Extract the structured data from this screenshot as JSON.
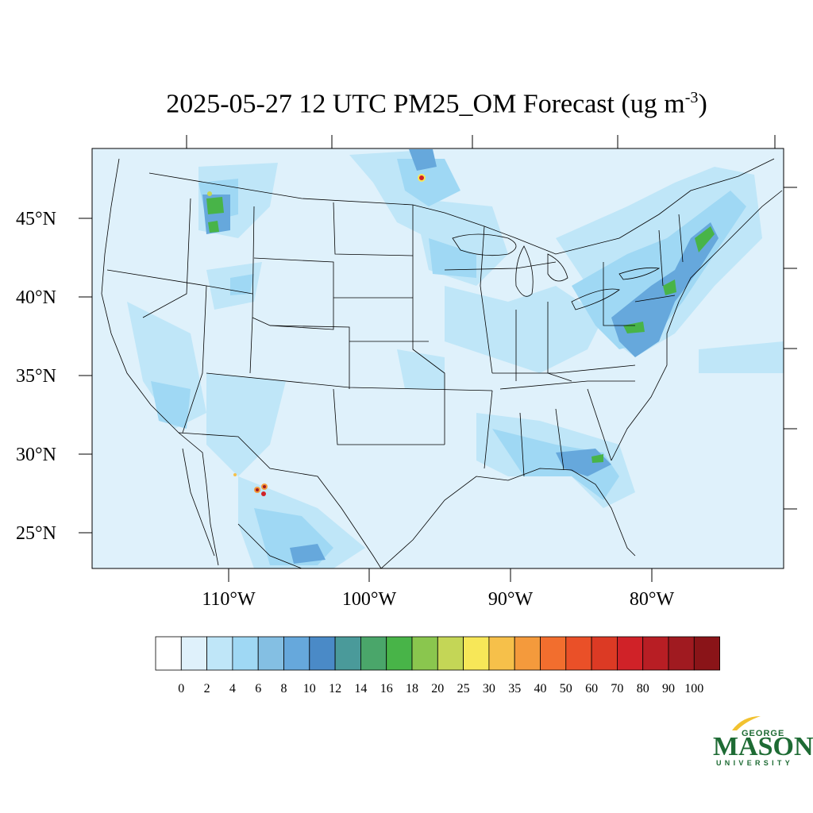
{
  "title": {
    "main": "2025-05-27 12 UTC PM25_OM Forecast (ug m",
    "superscript": "-3",
    "close": ")"
  },
  "map": {
    "lat_labels": [
      "45°N",
      "40°N",
      "35°N",
      "30°N",
      "25°N"
    ],
    "lon_labels": [
      "110°W",
      "100°W",
      "90°W",
      "80°W"
    ],
    "background_color": "#dff1fb"
  },
  "colorbar": {
    "labels": [
      "0",
      "2",
      "4",
      "6",
      "8",
      "10",
      "12",
      "14",
      "16",
      "18",
      "20",
      "25",
      "30",
      "35",
      "40",
      "50",
      "60",
      "70",
      "80",
      "90",
      "100"
    ],
    "colors": [
      "#ffffff",
      "#dff1fb",
      "#bfe6f8",
      "#9fd8f4",
      "#84bfe3",
      "#66a8dc",
      "#4a8ac7",
      "#4a9a9a",
      "#4aa66a",
      "#48b448",
      "#8ac64e",
      "#c4d656",
      "#f7e758",
      "#f6c04a",
      "#f49a3c",
      "#f26e2e",
      "#ea5028",
      "#dc3a24",
      "#d02228",
      "#b81e24",
      "#a01a20",
      "#8a1418"
    ]
  },
  "logo": {
    "line1": "GEORGE",
    "line2": "MASON",
    "line3": "UNIVERSITY",
    "color": "#1e6b34",
    "accent": "#f2c230"
  }
}
